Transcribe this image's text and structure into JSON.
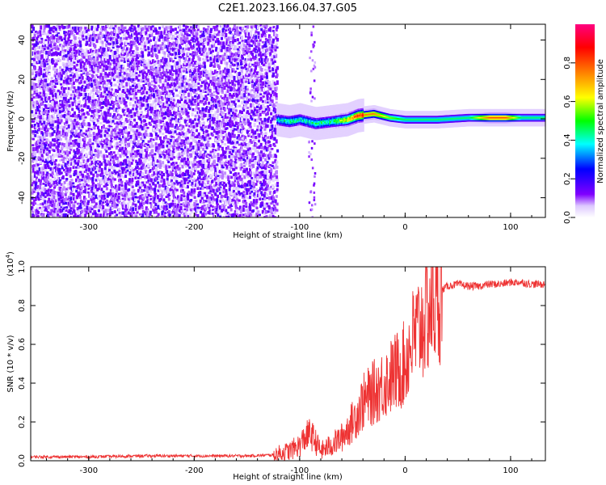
{
  "title": "C2E1.2023.166.04.37.G05",
  "chart_data": [
    {
      "type": "heatmap",
      "xlabel": "Height of straight line (km)",
      "ylabel": "Frequency (Hz)",
      "xlim": [
        -355,
        133
      ],
      "ylim": [
        -50,
        48
      ],
      "x_ticks": [
        -300,
        -200,
        -100,
        0,
        100
      ],
      "y_ticks": [
        40,
        20,
        0,
        -20,
        -40
      ],
      "x_tick_labels": [
        "-300",
        "-200",
        "-100",
        "0",
        "100"
      ],
      "y_tick_labels": [
        "40",
        "20",
        "0",
        "-20",
        "-40"
      ],
      "colorbar": {
        "label": "Normalized spectral amplitude",
        "range": [
          0,
          1
        ],
        "ticks": [
          0.0,
          0.2,
          0.4,
          0.6,
          0.8
        ],
        "tick_labels": [
          "0.0",
          "0.2",
          "0.4",
          "0.6",
          "0.8"
        ],
        "colors": [
          "#ffffff",
          "#8000ff",
          "#0000ff",
          "#00ffff",
          "#00ff00",
          "#ffff00",
          "#ff8000",
          "#ff0000",
          "#ff0080"
        ]
      },
      "noise_region": {
        "x": [
          -355,
          -122
        ],
        "y": [
          -50,
          48
        ],
        "amplitude": 0.15
      },
      "gap_region": {
        "x": [
          -122,
          -80
        ]
      },
      "ridge": [
        {
          "x": -122,
          "y": 0,
          "amplitude": 0.25
        },
        {
          "x": -110,
          "y": -1,
          "amplitude": 0.35
        },
        {
          "x": -100,
          "y": 0,
          "amplitude": 0.3
        },
        {
          "x": -85,
          "y": -2,
          "amplitude": 0.35
        },
        {
          "x": -70,
          "y": -1,
          "amplitude": 0.35
        },
        {
          "x": -55,
          "y": 0,
          "amplitude": 0.55
        },
        {
          "x": -45,
          "y": 2,
          "amplitude": 0.75
        },
        {
          "x": -30,
          "y": 3,
          "amplitude": 0.75
        },
        {
          "x": -15,
          "y": 1,
          "amplitude": 0.55
        },
        {
          "x": 0,
          "y": 0,
          "amplitude": 0.45
        },
        {
          "x": 30,
          "y": 0,
          "amplitude": 0.45
        },
        {
          "x": 60,
          "y": 1,
          "amplitude": 0.45
        },
        {
          "x": 80,
          "y": 1,
          "amplitude": 0.8
        },
        {
          "x": 95,
          "y": 1,
          "amplitude": 0.8
        },
        {
          "x": 110,
          "y": 1,
          "amplitude": 0.45
        },
        {
          "x": 133,
          "y": 1,
          "amplitude": 0.45
        }
      ]
    },
    {
      "type": "line",
      "xlabel": "Height of straight line (km)",
      "ylabel": "SNR (10 * v/v)",
      "y_scale_label": "(x10",
      "y_scale_exponent": "4",
      "y_scale_close": ")",
      "xlim": [
        -355,
        133
      ],
      "ylim": [
        0,
        1.0
      ],
      "x_ticks": [
        -300,
        -200,
        -100,
        0,
        100
      ],
      "y_ticks": [
        0.0,
        0.2,
        0.4,
        0.6,
        0.8,
        1.0
      ],
      "x_tick_labels": [
        "-300",
        "-200",
        "-100",
        "0",
        "100"
      ],
      "y_tick_labels": [
        "0.0",
        "0.2",
        "0.4",
        "0.6",
        "0.8",
        "1.0"
      ],
      "series": [
        {
          "color": "#ee3333",
          "x": [
            -355,
            -300,
            -250,
            -200,
            -150,
            -125,
            -110,
            -100,
            -95,
            -90,
            -85,
            -80,
            -70,
            -60,
            -50,
            -40,
            -30,
            -20,
            -10,
            0,
            5,
            10,
            15,
            20,
            25,
            30,
            35,
            40,
            50,
            60,
            70,
            80,
            90,
            100,
            110,
            120,
            133
          ],
          "y": [
            0.02,
            0.02,
            0.025,
            0.025,
            0.025,
            0.03,
            0.05,
            0.08,
            0.12,
            0.14,
            0.1,
            0.05,
            0.08,
            0.12,
            0.2,
            0.3,
            0.35,
            0.4,
            0.45,
            0.5,
            0.6,
            0.65,
            0.7,
            0.75,
            0.8,
            0.85,
            0.88,
            0.9,
            0.91,
            0.9,
            0.9,
            0.91,
            0.91,
            0.92,
            0.92,
            0.91,
            0.91
          ]
        }
      ]
    }
  ]
}
